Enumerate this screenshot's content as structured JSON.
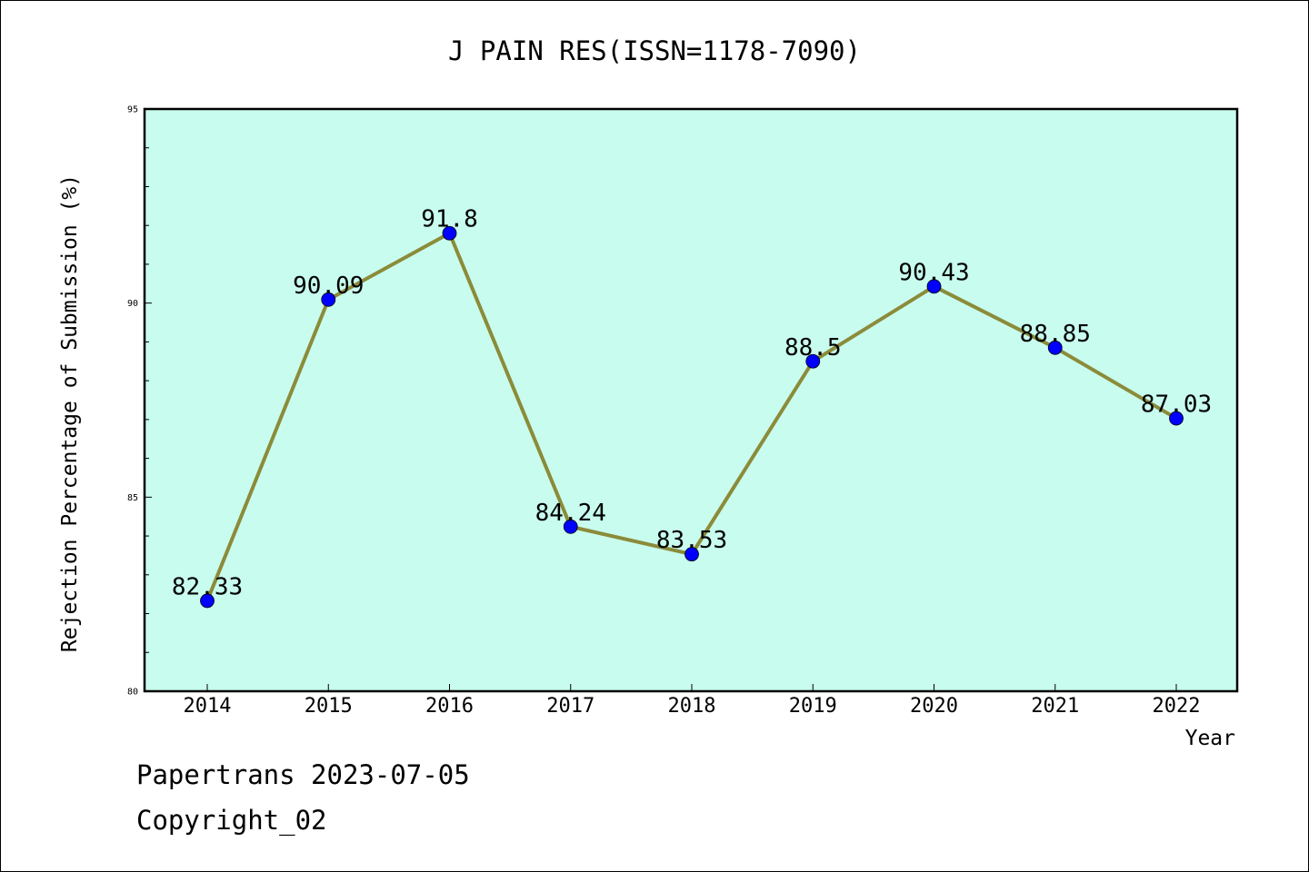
{
  "colors": {
    "plot_background": "#c8fcee",
    "line": "#8b8b3a",
    "marker": "#0000ff"
  },
  "footer": {
    "line1": "Papertrans 2023-07-05",
    "line2": "Copyright_02"
  },
  "chart_data": {
    "type": "line",
    "title": "J PAIN RES(ISSN=1178-7090)",
    "xlabel": "Year",
    "ylabel": "Rejection Percentage of Submission (%)",
    "categories": [
      "2014",
      "2015",
      "2016",
      "2017",
      "2018",
      "2019",
      "2020",
      "2021",
      "2022"
    ],
    "series": [
      {
        "values": [
          82.33,
          90.09,
          91.8,
          84.24,
          83.53,
          88.5,
          90.43,
          88.85,
          87.03
        ],
        "labels": [
          "82.33",
          "90.09",
          "91.8",
          "84.24",
          "83.53",
          "88.5",
          "90.43",
          "88.85",
          "87.03"
        ]
      }
    ],
    "ylim": [
      80,
      95
    ],
    "yticks": [
      80,
      85,
      90,
      95
    ],
    "grid": false,
    "legend": "none"
  }
}
